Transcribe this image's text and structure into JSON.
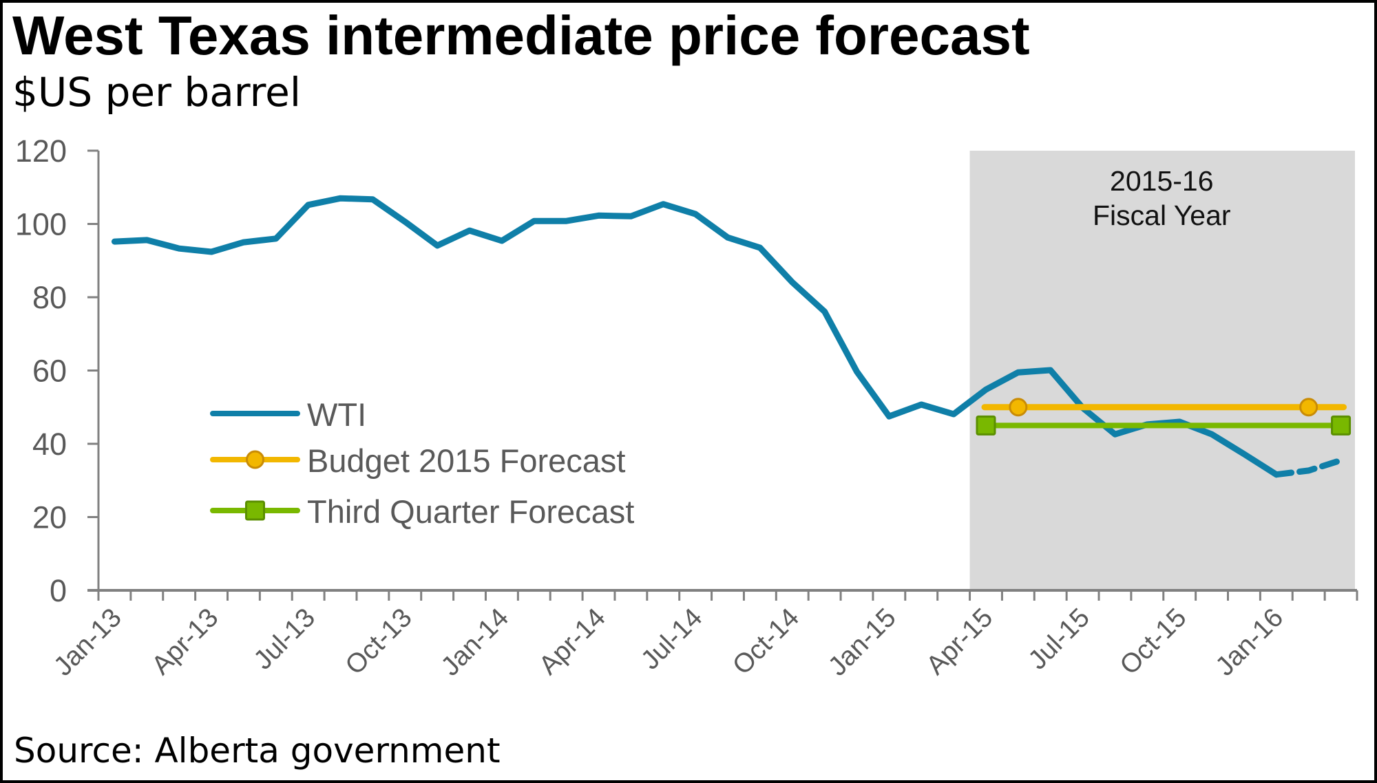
{
  "title": "West Texas intermediate price forecast",
  "subtitle": "$US per barrel",
  "source": "Source: Alberta government",
  "colors": {
    "wti": "#0f7fa8",
    "budget": "#f2b700",
    "budget_marker_stroke": "#c98c06",
    "third_quarter": "#79b800",
    "third_quarter_marker_stroke": "#5b8f00",
    "band": "#d9d9d9",
    "axis": "#808080",
    "axis_text": "#595959"
  },
  "chart_data": {
    "type": "line",
    "title": "West Texas intermediate price forecast",
    "subtitle": "$US per barrel",
    "xlabel": "",
    "ylabel": "$US per barrel",
    "ylim": [
      0,
      120
    ],
    "yticks": [
      0,
      20,
      40,
      60,
      80,
      100,
      120
    ],
    "grid": false,
    "legend_position": "left-center",
    "categories": [
      "Jan-13",
      "Feb-13",
      "Mar-13",
      "Apr-13",
      "May-13",
      "Jun-13",
      "Jul-13",
      "Aug-13",
      "Sep-13",
      "Oct-13",
      "Nov-13",
      "Dec-13",
      "Jan-14",
      "Feb-14",
      "Mar-14",
      "Apr-14",
      "May-14",
      "Jun-14",
      "Jul-14",
      "Aug-14",
      "Sep-14",
      "Oct-14",
      "Nov-14",
      "Dec-14",
      "Jan-15",
      "Feb-15",
      "Mar-15",
      "Apr-15",
      "May-15",
      "Jun-15",
      "Jul-15",
      "Aug-15",
      "Sep-15",
      "Oct-15",
      "Nov-15",
      "Dec-15",
      "Jan-16",
      "Feb-16",
      "Mar-16"
    ],
    "tick_labels": [
      "Jan-13",
      "Apr-13",
      "Jul-13",
      "Oct-13",
      "Jan-14",
      "Apr-14",
      "Jul-14",
      "Oct-14",
      "Jan-15",
      "Apr-15",
      "Jul-15",
      "Oct-15",
      "Jan-16"
    ],
    "shaded_region": {
      "label_line1": "2015-16",
      "label_line2": "Fiscal Year",
      "from": "Apr-15",
      "to": "Mar-16"
    },
    "series": [
      {
        "name": "WTI",
        "style": "line",
        "values": [
          95.2,
          95.6,
          93.3,
          92.4,
          95.0,
          96.0,
          105.2,
          107.0,
          106.7,
          100.6,
          94.1,
          98.2,
          95.4,
          100.8,
          100.8,
          102.3,
          102.1,
          105.4,
          102.7,
          96.3,
          93.5,
          84.1,
          76.1,
          59.7,
          47.5,
          50.7,
          48.1,
          54.8,
          59.5,
          60.1,
          49.8,
          42.6,
          45.3,
          46.0,
          42.6,
          37.2,
          31.6,
          32.7,
          35.5
        ],
        "dashed_from": "Jan-16"
      },
      {
        "name": "Budget 2015 Forecast",
        "style": "line-circle-markers",
        "from": "Apr-15",
        "to": "Mar-16",
        "value": 50,
        "markers_at": [
          "May-15",
          "Feb-16"
        ]
      },
      {
        "name": "Third Quarter Forecast",
        "style": "line-square-markers",
        "from": "Apr-15",
        "to": "Mar-16",
        "value": 45,
        "markers_at": [
          "Apr-15",
          "Mar-16"
        ]
      }
    ]
  }
}
